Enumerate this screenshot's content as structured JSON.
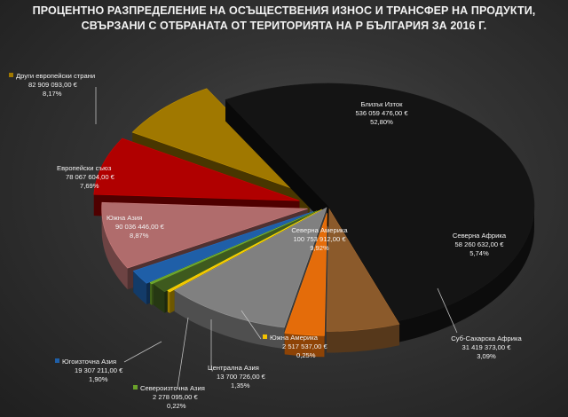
{
  "chart_data": {
    "type": "pie",
    "style": "3d-exploded",
    "title_line1": "ПРОЦЕНТНО РАЗПРЕДЕЛЕНИЕ НА ОСЪЩЕСТВЕНИЯ ИЗНОС И ТРАНСФЕР НА ПРОДУКТИ,",
    "title_line2": "СВЪРЗАНИ С ОТБРАНАТА ОТ ТЕРИТОРИЯТА НА Р БЪЛГАРИЯ ЗА 2016 Г.",
    "slices": [
      {
        "name": "Близък Изток",
        "value_text": "536 059 476,00 €",
        "value": 536059476.0,
        "percent_text": "52,80%",
        "percent": 52.8,
        "color": "#141414"
      },
      {
        "name": "Северна Африка",
        "value_text": "58 260 632,00 €",
        "value": 58260632.0,
        "percent_text": "5,74%",
        "percent": 5.74,
        "color": "#8b5a2b"
      },
      {
        "name": "Суб-Сахарска Африка",
        "value_text": "31 419 373,00 €",
        "value": 31419373.0,
        "percent_text": "3,09%",
        "percent": 3.09,
        "color": "#e46c0a"
      },
      {
        "name": "Северна Америка",
        "value_text": "100 753 912,00 €",
        "value": 100753912.0,
        "percent_text": "9,92%",
        "percent": 9.92,
        "color": "#808080"
      },
      {
        "name": "Южна Америка",
        "value_text": "2 517 537,00 €",
        "value": 2517537.0,
        "percent_text": "0,25%",
        "percent": 0.25,
        "color": "#f2c200"
      },
      {
        "name": "Централна Азия",
        "value_text": "13 700 726,00 €",
        "value": 13700726.0,
        "percent_text": "1,35%",
        "percent": 1.35,
        "color": "#3e5a1e"
      },
      {
        "name": "Североизточна Азия",
        "value_text": "2 278 095,00 €",
        "value": 2278095.0,
        "percent_text": "0,22%",
        "percent": 0.22,
        "color": "#6aa12a"
      },
      {
        "name": "Югоизточна Азия",
        "value_text": "19 307 211,00 €",
        "value": 19307211.0,
        "percent_text": "1,90%",
        "percent": 1.9,
        "color": "#1f5fa8"
      },
      {
        "name": "Южна Азия",
        "value_text": "90 036 446,00 €",
        "value": 90036446.0,
        "percent_text": "8,87%",
        "percent": 8.87,
        "color": "#b06c6c"
      },
      {
        "name": "Европейски съюз",
        "value_text": "78 067 604,00 €",
        "value": 78067604.0,
        "percent_text": "7,69%",
        "percent": 7.69,
        "color": "#b00000"
      },
      {
        "name": "Други европейски страни",
        "value_text": "82 909 093,00 €",
        "value": 82909093.0,
        "percent_text": "8,17%",
        "percent": 8.17,
        "color": "#a07800"
      }
    ]
  }
}
